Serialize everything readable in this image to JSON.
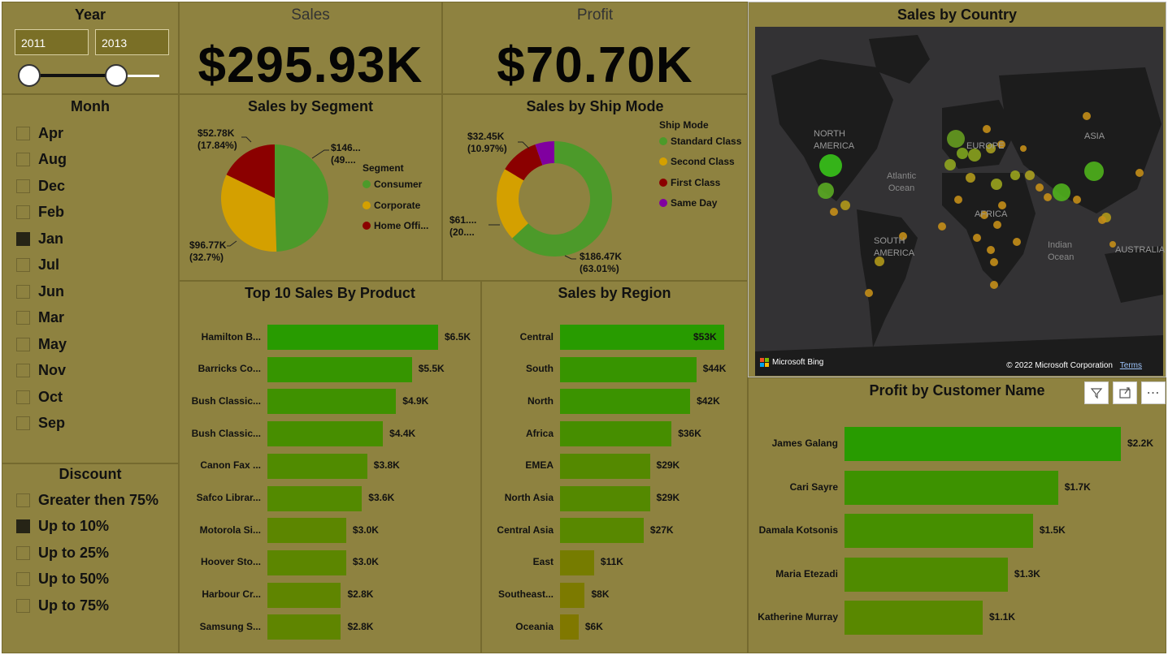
{
  "year_slicer": {
    "title": "Year",
    "start": "2011",
    "end": "2013"
  },
  "month_slicer": {
    "title": "Monh",
    "items": [
      {
        "label": "Apr",
        "checked": false
      },
      {
        "label": "Aug",
        "checked": false
      },
      {
        "label": "Dec",
        "checked": false
      },
      {
        "label": "Feb",
        "checked": false
      },
      {
        "label": "Jan",
        "checked": true
      },
      {
        "label": "Jul",
        "checked": false
      },
      {
        "label": "Jun",
        "checked": false
      },
      {
        "label": "Mar",
        "checked": false
      },
      {
        "label": "May",
        "checked": false
      },
      {
        "label": "Nov",
        "checked": false
      },
      {
        "label": "Oct",
        "checked": false
      },
      {
        "label": "Sep",
        "checked": false
      }
    ]
  },
  "discount_slicer": {
    "title": "Discount",
    "items": [
      {
        "label": "Greater then 75%",
        "checked": false
      },
      {
        "label": "Up to 10%",
        "checked": true
      },
      {
        "label": "Up to 25%",
        "checked": false
      },
      {
        "label": "Up to 50%",
        "checked": false
      },
      {
        "label": "Up to 75%",
        "checked": false
      }
    ]
  },
  "kpis": {
    "sales": {
      "title": "Sales",
      "value": "$295.93K"
    },
    "profit": {
      "title": "Profit",
      "value": "$70.70K"
    }
  },
  "segment_chart": {
    "title": "Sales by Segment",
    "legend_title": "Segment",
    "legend": [
      "Consumer",
      "Corporate",
      "Home Offi..."
    ],
    "labels": {
      "consumer_line1": "$146...",
      "consumer_line2": "(49....",
      "corporate_line1": "$96.77K",
      "corporate_line2": "(32.7%)",
      "home_line1": "$52.78K",
      "home_line2": "(17.84%)"
    }
  },
  "shipmode_chart": {
    "title": "Sales by Ship Mode",
    "legend_title": "Ship Mode",
    "legend": [
      "Standard Class",
      "Second Class",
      "First Class",
      "Same Day"
    ],
    "labels": {
      "standard_line1": "$186.47K",
      "standard_line2": "(63.01%)",
      "second_line1": "$61....",
      "second_line2": "(20....",
      "first_line1": "$32.45K",
      "first_line2": "(10.97%)"
    }
  },
  "map": {
    "title": "Sales by Country",
    "labels": {
      "na1": "NORTH",
      "na2": "AMERICA",
      "ocean1": "Atlantic",
      "ocean2": "Ocean",
      "europe": "EUROPE",
      "asia": "ASIA",
      "africa": "AFRICA",
      "sa1": "SOUTH",
      "sa2": "AMERICA",
      "indian1": "Indian",
      "indian2": "Ocean",
      "australia": "AUSTRALIA"
    },
    "attribution": "© 2022 Microsoft Corporation",
    "terms": "Terms",
    "bing": "Microsoft Bing"
  },
  "customer_toolbar": {
    "filter_icon": "filter-icon",
    "focus_icon": "focus-mode-icon",
    "more_icon": "more-options-icon"
  },
  "chart_data": [
    {
      "type": "pie",
      "title": "Sales by Segment",
      "legend_title": "Segment",
      "categories": [
        "Consumer",
        "Corporate",
        "Home Office"
      ],
      "values": [
        146.4,
        96.77,
        52.78
      ],
      "percent": [
        49.46,
        32.7,
        17.84
      ],
      "colors": [
        "#4c9a2a",
        "#d4a000",
        "#8b0000"
      ],
      "legend_position": "right"
    },
    {
      "type": "pie",
      "subtype": "donut",
      "title": "Sales by Ship Mode",
      "legend_title": "Ship Mode",
      "categories": [
        "Standard Class",
        "Second Class",
        "First Class",
        "Same Day"
      ],
      "values": [
        186.47,
        61.0,
        32.45,
        16.0
      ],
      "percent": [
        63.01,
        20.6,
        10.97,
        5.42
      ],
      "colors": [
        "#4c9a2a",
        "#d4a000",
        "#8b0000",
        "#8000a0"
      ],
      "legend_position": "top-right"
    },
    {
      "type": "bar",
      "orientation": "horizontal",
      "title": "Top 10 Sales By Product",
      "categories": [
        "Hamilton B...",
        "Barricks Co...",
        "Bush Classic...",
        "Bush Classic...",
        "Canon Fax ...",
        "Safco Librar...",
        "Motorola Si...",
        "Hoover Sto...",
        "Harbour Cr...",
        "Samsung S..."
      ],
      "values": [
        6.5,
        5.5,
        4.9,
        4.4,
        3.8,
        3.6,
        3.0,
        3.0,
        2.8,
        2.8
      ],
      "value_labels": [
        "$6.5K",
        "$5.5K",
        "$4.9K",
        "$4.4K",
        "$3.8K",
        "$3.6K",
        "$3.0K",
        "$3.0K",
        "$2.8K",
        "$2.8K"
      ],
      "unit": "K"
    },
    {
      "type": "bar",
      "orientation": "horizontal",
      "title": "Sales by Region",
      "categories": [
        "Central",
        "South",
        "North",
        "Africa",
        "EMEA",
        "North Asia",
        "Central Asia",
        "East",
        "Southeast...",
        "Oceania"
      ],
      "values": [
        53,
        44,
        42,
        36,
        29,
        29,
        27,
        11,
        8,
        6
      ],
      "value_labels": [
        "$53K",
        "$44K",
        "$42K",
        "$36K",
        "$29K",
        "$29K",
        "$27K",
        "$11K",
        "$8K",
        "$6K"
      ],
      "unit": "K"
    },
    {
      "type": "bar",
      "orientation": "horizontal",
      "title": "Profit by Customer Name",
      "categories": [
        "James Galang",
        "Cari Sayre",
        "Damala Kotsonis",
        "Maria Etezadi",
        "Katherine Murray"
      ],
      "values": [
        2.2,
        1.7,
        1.5,
        1.3,
        1.1
      ],
      "value_labels": [
        "$2.2K",
        "$1.7K",
        "$1.5K",
        "$1.3K",
        "$1.1K"
      ],
      "unit": "K"
    }
  ]
}
